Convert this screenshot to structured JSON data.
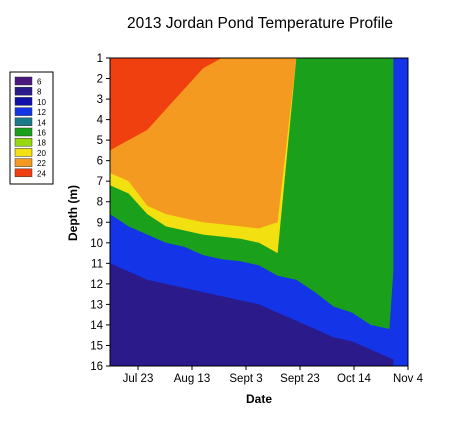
{
  "chart_data": {
    "type": "heatmap",
    "title": "2013 Jordan Pond Temperature Profile",
    "xlabel": "Date",
    "ylabel": "Depth (m)",
    "x_ticks": [
      "Jul 23",
      "Aug 13",
      "Sept 3",
      "Sept 23",
      "Oct 14",
      "Nov 4"
    ],
    "y_ticks": [
      1,
      2,
      3,
      4,
      5,
      6,
      7,
      8,
      9,
      10,
      11,
      12,
      13,
      14,
      15,
      16
    ],
    "ylim": [
      1,
      16
    ],
    "y_inverted": true,
    "xlim": [
      "2013-07-15",
      "2013-11-04"
    ],
    "legend": {
      "position": "left",
      "entries": [
        {
          "label": "6",
          "color": "#4a1880"
        },
        {
          "label": "8",
          "color": "#2a1a8a"
        },
        {
          "label": "10",
          "color": "#1010a8"
        },
        {
          "label": "12",
          "color": "#1434e8"
        },
        {
          "label": "14",
          "color": "#1a7a8a"
        },
        {
          "label": "16",
          "color": "#1aa01a"
        },
        {
          "label": "18",
          "color": "#98d810"
        },
        {
          "label": "20",
          "color": "#f2e010"
        },
        {
          "label": "22",
          "color": "#f59a20"
        },
        {
          "label": "24",
          "color": "#f04010"
        }
      ]
    },
    "isotherm_depths": {
      "dates": [
        "2013-07-15",
        "2013-07-22",
        "2013-07-29",
        "2013-08-05",
        "2013-08-12",
        "2013-08-19",
        "2013-08-26",
        "2013-09-02",
        "2013-09-09",
        "2013-09-16",
        "2013-09-23",
        "2013-09-30",
        "2013-10-07",
        "2013-10-14",
        "2013-10-21",
        "2013-10-28",
        "2013-11-04"
      ],
      "above_22_top": [
        1,
        1,
        1,
        1,
        1,
        1,
        1,
        1,
        1,
        1,
        1,
        1,
        1,
        1,
        1,
        1,
        1
      ],
      "t24_bottom": [
        5.5,
        5.0,
        4.5,
        3.5,
        2.5,
        1.5,
        1.0,
        1.0,
        1.0,
        1.0,
        1.0,
        1.0,
        1.0,
        1.0,
        1.0,
        1.0,
        1.0
      ],
      "t22_bottom": [
        6.6,
        7.0,
        8.2,
        8.6,
        8.8,
        9.0,
        9.1,
        9.2,
        9.3,
        9.0,
        1.0,
        1.0,
        1.0,
        1.0,
        1.0,
        1.0,
        1.0
      ],
      "t20_bottom": [
        7.2,
        7.6,
        8.6,
        9.2,
        9.4,
        9.6,
        9.7,
        9.8,
        10.0,
        10.5,
        1.0,
        1.0,
        1.0,
        1.0,
        1.0,
        1.0,
        1.0
      ],
      "t16_bottom": [
        8.6,
        9.2,
        9.6,
        10.0,
        10.2,
        10.6,
        10.8,
        10.9,
        11.1,
        11.6,
        11.8,
        12.4,
        13.1,
        13.4,
        14.0,
        14.2,
        1.0
      ],
      "t12_bottom": [
        11.0,
        11.4,
        11.8,
        12.0,
        12.2,
        12.4,
        12.6,
        12.8,
        13.0,
        13.4,
        13.8,
        14.2,
        14.6,
        14.8,
        15.2,
        15.6,
        16.0
      ]
    }
  }
}
